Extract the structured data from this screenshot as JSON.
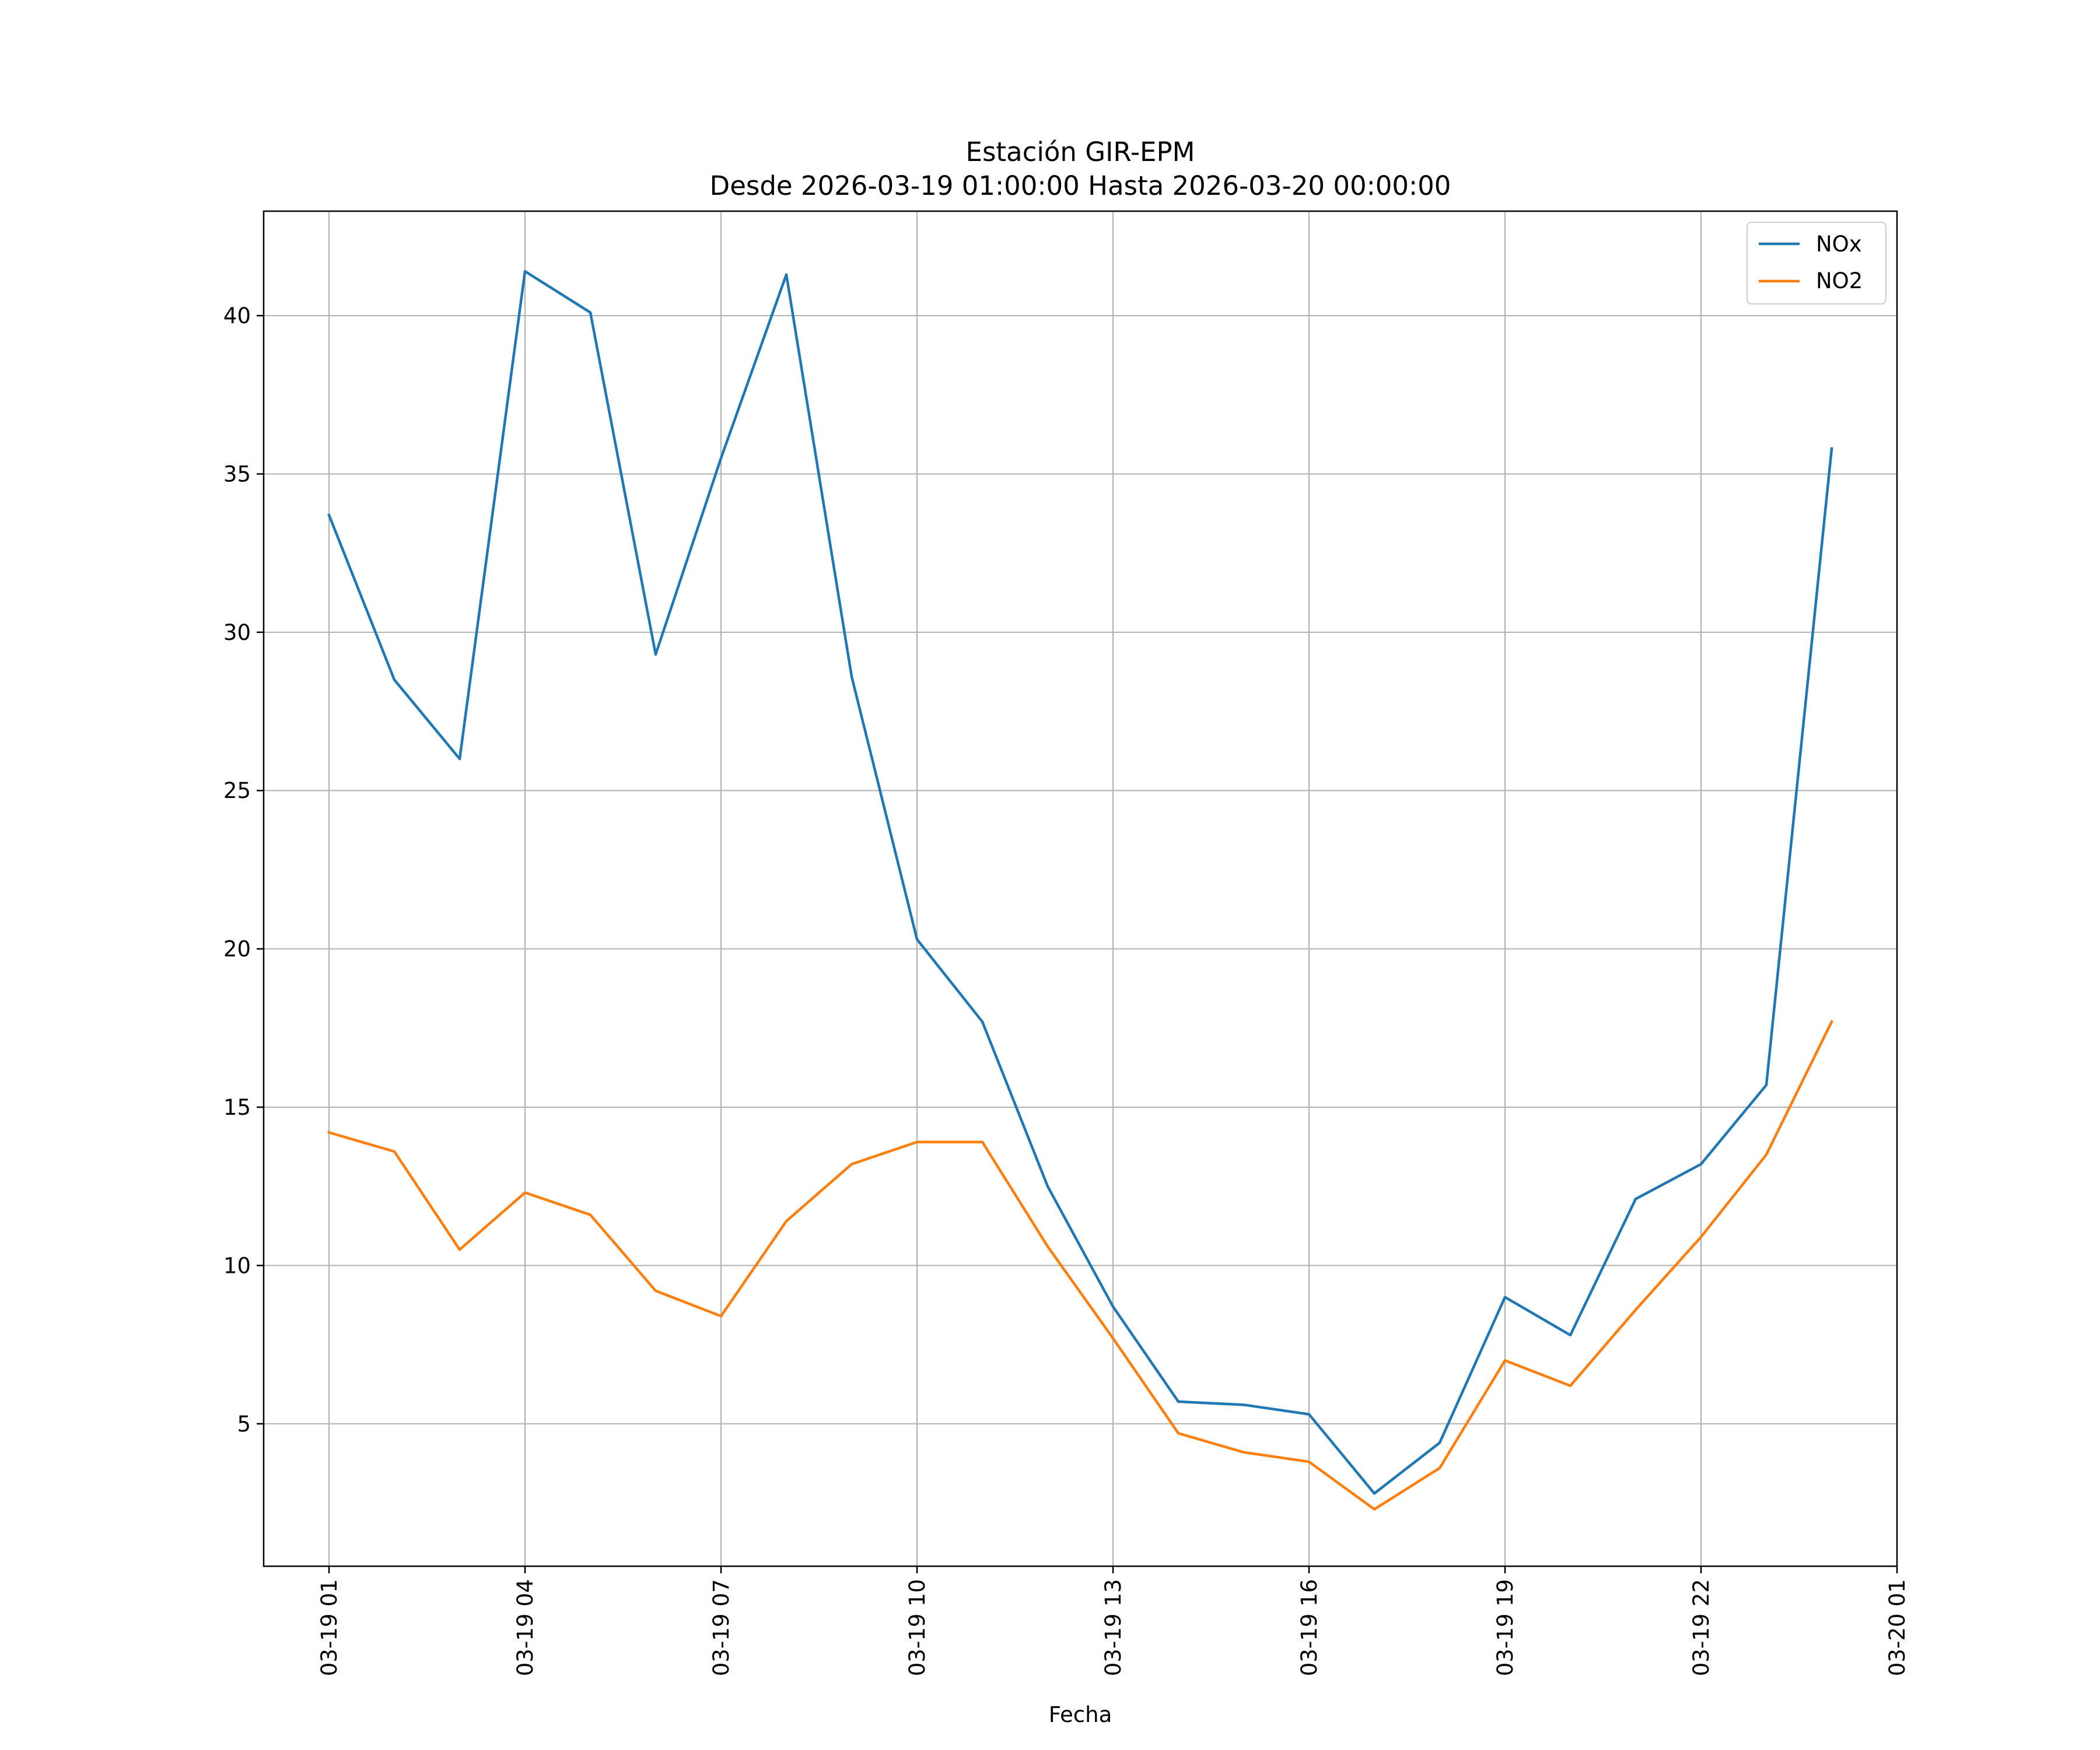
{
  "chart_data": {
    "type": "line",
    "title": "Estación GIR-EPM",
    "subtitle": "Desde 2026-03-19 01:00:00 Hasta 2026-03-20 00:00:00",
    "xlabel": "Fecha",
    "ylabel": "",
    "x": [
      "2026-03-19 01:00",
      "2026-03-19 02:00",
      "2026-03-19 03:00",
      "2026-03-19 04:00",
      "2026-03-19 05:00",
      "2026-03-19 06:00",
      "2026-03-19 07:00",
      "2026-03-19 08:00",
      "2026-03-19 09:00",
      "2026-03-19 10:00",
      "2026-03-19 11:00",
      "2026-03-19 12:00",
      "2026-03-19 13:00",
      "2026-03-19 14:00",
      "2026-03-19 15:00",
      "2026-03-19 16:00",
      "2026-03-19 17:00",
      "2026-03-19 18:00",
      "2026-03-19 19:00",
      "2026-03-19 20:00",
      "2026-03-19 21:00",
      "2026-03-19 22:00",
      "2026-03-19 23:00",
      "2026-03-20 00:00"
    ],
    "xlim": [
      "2026-03-19 00:00",
      "2026-03-20 01:00"
    ],
    "ylim": [
      0.5,
      43.3
    ],
    "series": [
      {
        "name": "NOx",
        "color": "#1f77b4",
        "values": [
          33.7,
          28.5,
          26.0,
          41.4,
          40.1,
          29.3,
          35.5,
          41.3,
          28.6,
          20.3,
          17.7,
          12.5,
          8.7,
          5.7,
          5.6,
          5.3,
          2.8,
          4.4,
          9.0,
          7.8,
          12.1,
          13.2,
          15.7,
          35.8
        ]
      },
      {
        "name": "NO2",
        "color": "#ff7f0e",
        "values": [
          14.2,
          13.6,
          10.5,
          12.3,
          11.6,
          9.2,
          8.4,
          11.4,
          13.2,
          13.9,
          13.9,
          10.6,
          7.7,
          4.7,
          4.1,
          3.8,
          2.3,
          3.6,
          7.0,
          6.2,
          8.6,
          10.9,
          13.5,
          17.7
        ]
      }
    ],
    "xticks": [
      {
        "value": "2026-03-19 01:00",
        "label": "03-19 01"
      },
      {
        "value": "2026-03-19 04:00",
        "label": "03-19 04"
      },
      {
        "value": "2026-03-19 07:00",
        "label": "03-19 07"
      },
      {
        "value": "2026-03-19 10:00",
        "label": "03-19 10"
      },
      {
        "value": "2026-03-19 13:00",
        "label": "03-19 13"
      },
      {
        "value": "2026-03-19 16:00",
        "label": "03-19 16"
      },
      {
        "value": "2026-03-19 19:00",
        "label": "03-19 19"
      },
      {
        "value": "2026-03-19 22:00",
        "label": "03-19 22"
      },
      {
        "value": "2026-03-20 01:00",
        "label": "03-20 01"
      }
    ],
    "yticks": [
      5,
      10,
      15,
      20,
      25,
      30,
      35,
      40
    ],
    "grid": true,
    "legend": "top-right"
  }
}
